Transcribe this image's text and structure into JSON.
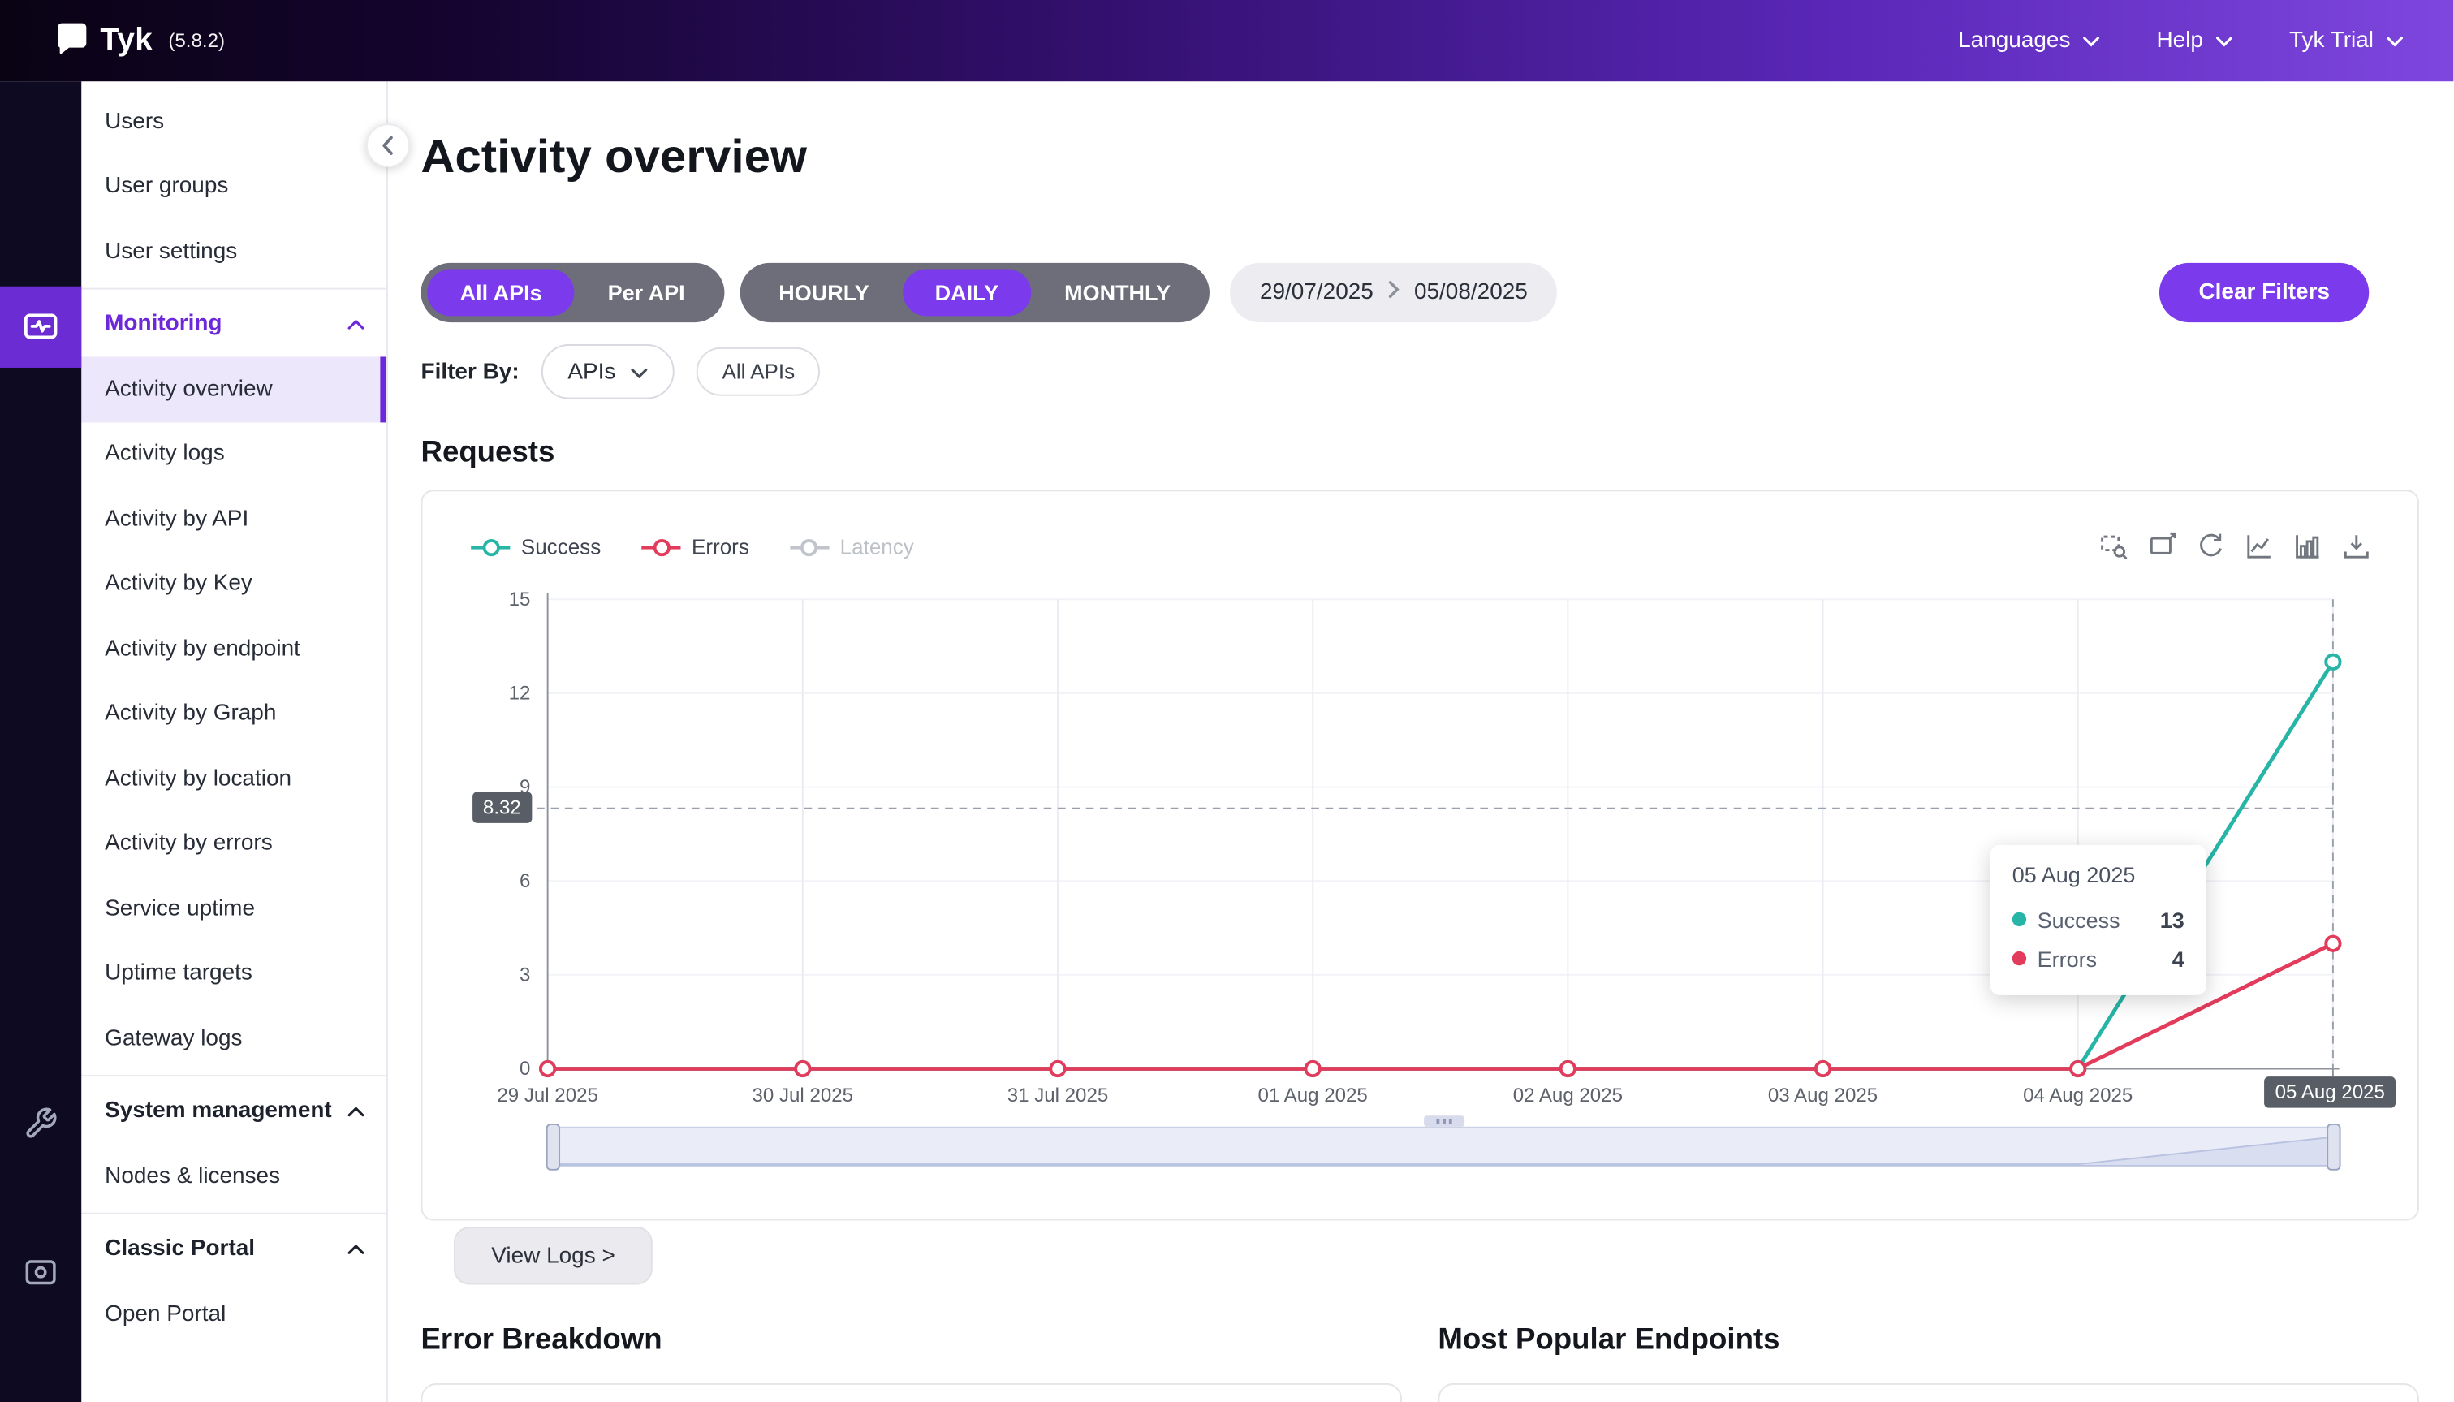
{
  "brand": {
    "name": "Tyk",
    "version": "(5.8.2)"
  },
  "header": {
    "menus": [
      {
        "label": "Languages"
      },
      {
        "label": "Help"
      },
      {
        "label": "Tyk Trial"
      }
    ]
  },
  "sidebar": {
    "top_items": [
      {
        "label": "Users"
      },
      {
        "label": "User groups"
      },
      {
        "label": "User settings"
      }
    ],
    "monitoring": {
      "label": "Monitoring",
      "items": [
        {
          "label": "Activity overview",
          "active": true
        },
        {
          "label": "Activity logs"
        },
        {
          "label": "Activity by API"
        },
        {
          "label": "Activity by Key"
        },
        {
          "label": "Activity by endpoint"
        },
        {
          "label": "Activity by Graph"
        },
        {
          "label": "Activity by location"
        },
        {
          "label": "Activity by errors"
        },
        {
          "label": "Service uptime"
        },
        {
          "label": "Uptime targets"
        },
        {
          "label": "Gateway logs"
        }
      ]
    },
    "system": {
      "label": "System management",
      "items": [
        {
          "label": "Nodes & licenses"
        }
      ]
    },
    "portal": {
      "label": "Classic Portal",
      "items": [
        {
          "label": "Open Portal"
        }
      ]
    }
  },
  "page": {
    "title": "Activity overview",
    "scope_toggle": {
      "options": [
        "All APIs",
        "Per API"
      ],
      "active": "All APIs"
    },
    "granularity_toggle": {
      "options": [
        "HOURLY",
        "DAILY",
        "MONTHLY"
      ],
      "active": "DAILY"
    },
    "date_range": {
      "start": "29/07/2025",
      "end": "05/08/2025"
    },
    "clear_filters": "Clear Filters",
    "filter_by_label": "Filter By:",
    "filter_dropdown": "APIs",
    "filter_chip": "All APIs",
    "requests_heading": "Requests",
    "view_logs": "View Logs >",
    "bottom_sections": [
      {
        "title": "Error Breakdown"
      },
      {
        "title": "Most Popular Endpoints"
      }
    ]
  },
  "chart_data": {
    "type": "line",
    "x": [
      "29 Jul 2025",
      "30 Jul 2025",
      "31 Jul 2025",
      "01 Aug 2025",
      "02 Aug 2025",
      "03 Aug 2025",
      "04 Aug 2025",
      "05 Aug 2025"
    ],
    "series": [
      {
        "name": "Success",
        "color": "#26b5a6",
        "values": [
          0,
          0,
          0,
          0,
          0,
          0,
          0,
          13
        ]
      },
      {
        "name": "Errors",
        "color": "#e23b5b",
        "values": [
          0,
          0,
          0,
          0,
          0,
          0,
          0,
          4
        ]
      },
      {
        "name": "Latency",
        "color": "#c2c4cc",
        "values": [],
        "disabled": true
      }
    ],
    "yticks": [
      0,
      3,
      6,
      9,
      12,
      15
    ],
    "ylim": [
      0,
      15
    ],
    "grid": true,
    "legend_position": "top-left",
    "pointer": {
      "y_value": 8.32,
      "y_label": "8.32",
      "x_label": "05 Aug 2025",
      "x_index": 7
    },
    "tooltip": {
      "title": "05 Aug 2025",
      "rows": [
        {
          "name": "Success",
          "value": "13",
          "color": "#26b5a6"
        },
        {
          "name": "Errors",
          "value": "4",
          "color": "#e23b5b"
        }
      ]
    }
  }
}
